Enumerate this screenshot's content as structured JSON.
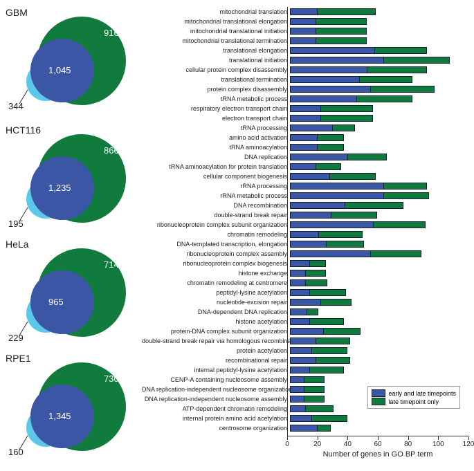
{
  "colors": {
    "blue": "#3c56a6",
    "green": "#117b3d",
    "lightblue": "#5bc8e9",
    "axis": "#333333",
    "text": "#222222",
    "bg": "#ffffff"
  },
  "legend": {
    "blue": "early and late timepoints",
    "green": "late timepoint only"
  },
  "axis": {
    "xlabel": "Number of genes in GO BP term",
    "xmax": 120,
    "ticks": [
      0,
      20,
      40,
      60,
      80,
      100,
      120
    ]
  },
  "venn": [
    {
      "label": "GBM",
      "outer": "916",
      "overlap": "1,045",
      "only": "344"
    },
    {
      "label": "HCT116",
      "outer": "866",
      "overlap": "1,235",
      "only": "195"
    },
    {
      "label": "HeLa",
      "outer": "714",
      "overlap": "965",
      "only": "229"
    },
    {
      "label": "RPE1",
      "outer": "730",
      "overlap": "1,345",
      "only": "160"
    }
  ],
  "bars": [
    {
      "label": "mitochondrial translation",
      "blue": 18,
      "green": 38
    },
    {
      "label": "mitochondrial translational elongation",
      "blue": 17,
      "green": 33
    },
    {
      "label": "mitochondrial translational initiation",
      "blue": 17,
      "green": 33
    },
    {
      "label": "mitochondrial translational termination",
      "blue": 17,
      "green": 33
    },
    {
      "label": "translational elongation",
      "blue": 56,
      "green": 34
    },
    {
      "label": "translational initiation",
      "blue": 62,
      "green": 43
    },
    {
      "label": "cellular protein complex disassembly",
      "blue": 51,
      "green": 39
    },
    {
      "label": "translational termination",
      "blue": 46,
      "green": 34
    },
    {
      "label": "protein complex disassembly",
      "blue": 53,
      "green": 42
    },
    {
      "label": "tRNA metabolic process",
      "blue": 44,
      "green": 36
    },
    {
      "label": "respiratory electron transport chain",
      "blue": 20,
      "green": 34
    },
    {
      "label": "electron transport chain",
      "blue": 20,
      "green": 34
    },
    {
      "label": "tRNA processing",
      "blue": 28,
      "green": 14
    },
    {
      "label": "amino acid activation",
      "blue": 18,
      "green": 17
    },
    {
      "label": "tRNA aminoacylation",
      "blue": 18,
      "green": 17
    },
    {
      "label": "DNA replication",
      "blue": 38,
      "green": 25
    },
    {
      "label": "tRNA aminoacylation for protein translation",
      "blue": 17,
      "green": 16
    },
    {
      "label": "cellular component biogenesis",
      "blue": 26,
      "green": 30
    },
    {
      "label": "rRNA processing",
      "blue": 62,
      "green": 28
    },
    {
      "label": "rRNA metabolic process",
      "blue": 62,
      "green": 29
    },
    {
      "label": "DNA recombination",
      "blue": 36,
      "green": 38
    },
    {
      "label": "double-strand break repair",
      "blue": 27,
      "green": 30
    },
    {
      "label": "ribonucleoprotein complex subunit organization",
      "blue": 55,
      "green": 34
    },
    {
      "label": "chromatin remodeling",
      "blue": 19,
      "green": 28
    },
    {
      "label": "DNA-templated transcription, elongation",
      "blue": 24,
      "green": 24
    },
    {
      "label": "ribonucleoprotein complex assembly",
      "blue": 53,
      "green": 33
    },
    {
      "label": "ribonucleoprotein complex biogenesis",
      "blue": 13,
      "green": 10
    },
    {
      "label": "histone exchange",
      "blue": 10,
      "green": 13
    },
    {
      "label": "chromatin remodeling at centromere",
      "blue": 10,
      "green": 14
    },
    {
      "label": "peptidyl-lysine acetylation",
      "blue": 13,
      "green": 23
    },
    {
      "label": "nucleotide-excision repair",
      "blue": 20,
      "green": 20
    },
    {
      "label": "DNA-dependent DNA replication",
      "blue": 11,
      "green": 7
    },
    {
      "label": "histone acetylation",
      "blue": 13,
      "green": 22
    },
    {
      "label": "protein-DNA complex subunit organization",
      "blue": 22,
      "green": 24
    },
    {
      "label": "double-strand break repair via homologous recombination",
      "blue": 17,
      "green": 22
    },
    {
      "label": "protein acetylation",
      "blue": 14,
      "green": 23
    },
    {
      "label": "recombinational repair",
      "blue": 17,
      "green": 22
    },
    {
      "label": "internal peptidyl-lysine acetylation",
      "blue": 13,
      "green": 22
    },
    {
      "label": "CENP-A containing nucleosome assembly",
      "blue": 9,
      "green": 13
    },
    {
      "label": "DNA replication-independent nucleosome organization",
      "blue": 9,
      "green": 13
    },
    {
      "label": "DNA replication-independent nucleosome assembly",
      "blue": 9,
      "green": 13
    },
    {
      "label": "ATP-dependent chromatin remodeling",
      "blue": 10,
      "green": 18
    },
    {
      "label": "internal protein amino acid acetylation",
      "blue": 14,
      "green": 23
    },
    {
      "label": "centrosome organization",
      "blue": 18,
      "green": 8
    }
  ]
}
